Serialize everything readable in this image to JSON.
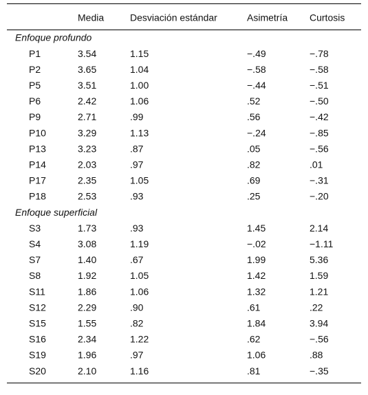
{
  "table": {
    "columns": [
      "Media",
      "Desviación estándar",
      "Asimetría",
      "Curtosis"
    ],
    "groups": [
      {
        "title": "Enfoque profundo",
        "rows": [
          [
            "P1",
            "3.54",
            "1.15",
            "−.49",
            "−.78"
          ],
          [
            "P2",
            "3.65",
            "1.04",
            "−.58",
            "−.58"
          ],
          [
            "P5",
            "3.51",
            "1.00",
            "−.44",
            "−.51"
          ],
          [
            "P6",
            "2.42",
            "1.06",
            ".52",
            "−.50"
          ],
          [
            "P9",
            "2.71",
            ".99",
            ".56",
            "−.42"
          ],
          [
            "P10",
            "3.29",
            "1.13",
            "−.24",
            "−.85"
          ],
          [
            "P13",
            "3.23",
            ".87",
            ".05",
            "−.56"
          ],
          [
            "P14",
            "2.03",
            ".97",
            ".82",
            ".01"
          ],
          [
            "P17",
            "2.35",
            "1.05",
            ".69",
            "−.31"
          ],
          [
            "P18",
            "2.53",
            ".93",
            ".25",
            "−.20"
          ]
        ]
      },
      {
        "title": "Enfoque superficial",
        "rows": [
          [
            "S3",
            "1.73",
            ".93",
            "1.45",
            "2.14"
          ],
          [
            "S4",
            "3.08",
            "1.19",
            "−.02",
            "−1.11"
          ],
          [
            "S7",
            "1.40",
            ".67",
            "1.99",
            "5.36"
          ],
          [
            "S8",
            "1.92",
            "1.05",
            "1.42",
            "1.59"
          ],
          [
            "S11",
            "1.86",
            "1.06",
            "1.32",
            "1.21"
          ],
          [
            "S12",
            "2.29",
            ".90",
            ".61",
            ".22"
          ],
          [
            "S15",
            "1.55",
            ".82",
            "1.84",
            "3.94"
          ],
          [
            "S16",
            "2.34",
            "1.22",
            ".62",
            "−.56"
          ],
          [
            "S19",
            "1.96",
            ".97",
            "1.06",
            ".88"
          ],
          [
            "S20",
            "2.10",
            "1.16",
            ".81",
            "−.35"
          ]
        ]
      }
    ]
  }
}
